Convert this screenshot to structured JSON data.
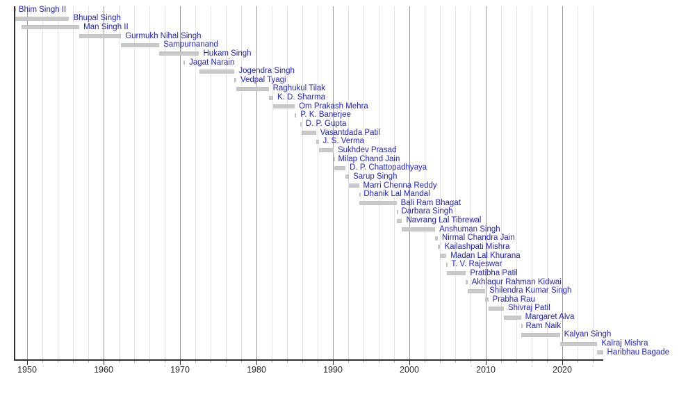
{
  "chart_data": {
    "type": "timeline",
    "title": "",
    "description_visible_text_only": "Gantt-style timeline of officeholders; each row is a grey bar for a term with the person's name to the right of the bar",
    "x_axis": {
      "range_start": 1948.35,
      "range_end": 2025.32,
      "ticks": [
        1950,
        1960,
        1970,
        1980,
        1990,
        2000,
        2010,
        2020
      ],
      "minor_gridline_interval_years": 2,
      "grid": true,
      "legend": "none"
    },
    "colors": {
      "bar": "#c9c9c9",
      "name_link": "#2222cc",
      "minor_gridline": "#e4e4e4",
      "decade_gridline": "#979797",
      "axis": "#2f2f2f",
      "tick_label": "#2a2a2a",
      "background": "#ffffff"
    },
    "rows": [
      {
        "label": "Bhim Singh II",
        "start": 1948.25,
        "end": 1948.33
      },
      {
        "label": "Bhupal Singh",
        "start": 1948.3,
        "end": 1955.5
      },
      {
        "label": "Man Singh II",
        "start": 1949.24,
        "end": 1956.83
      },
      {
        "label": "Gurmukh Nihal Singh",
        "start": 1956.83,
        "end": 1962.29
      },
      {
        "label": "Sampurnanand",
        "start": 1962.29,
        "end": 1967.29
      },
      {
        "label": "Hukam Singh",
        "start": 1967.29,
        "end": 1972.5
      },
      {
        "label": "Jagat Narain",
        "start": 1970.45,
        "end": 1970.65
      },
      {
        "label": "Jogendra Singh",
        "start": 1972.5,
        "end": 1977.12
      },
      {
        "label": "Vedpal Tyagi",
        "start": 1977.12,
        "end": 1977.36
      },
      {
        "label": "Raghukul Tilak",
        "start": 1977.38,
        "end": 1981.6
      },
      {
        "label": "K. D. Sharma",
        "start": 1981.6,
        "end": 1982.18
      },
      {
        "label": "Om Prakash Mehra",
        "start": 1982.18,
        "end": 1985.01
      },
      {
        "label": "P. K. Banerjee",
        "start": 1985.01,
        "end": 1985.2
      },
      {
        "label": "D. P. Gupta",
        "start": 1985.7,
        "end": 1985.89
      },
      {
        "label": "Vasantdada Patil",
        "start": 1985.89,
        "end": 1987.79
      },
      {
        "label": "J. S. Verma",
        "start": 1987.79,
        "end": 1988.14
      },
      {
        "label": "Sukhdev Prasad",
        "start": 1988.14,
        "end": 1990.09
      },
      {
        "label": "Milap Chand Jain",
        "start": 1990.09,
        "end": 1990.14
      },
      {
        "label": "D. P. Chattopadhyaya",
        "start": 1990.14,
        "end": 1991.65
      },
      {
        "label": "Sarup Singh",
        "start": 1991.65,
        "end": 1992.1
      },
      {
        "label": "Marri Chenna Reddy",
        "start": 1992.1,
        "end": 1993.41
      },
      {
        "label": "Dhanik Lal Mandal",
        "start": 1993.41,
        "end": 1993.49
      },
      {
        "label": "Bali Ram Bhagat",
        "start": 1993.49,
        "end": 1998.33
      },
      {
        "label": "Darbara Singh",
        "start": 1998.33,
        "end": 1998.4
      },
      {
        "label": "Navrang Lal Tibrewal",
        "start": 1998.4,
        "end": 1999.04
      },
      {
        "label": "Anshuman Singh",
        "start": 1999.04,
        "end": 2003.37
      },
      {
        "label": "Nirmal Chandra Jain",
        "start": 2003.37,
        "end": 2003.72
      },
      {
        "label": "Kailashpati Mishra",
        "start": 2003.72,
        "end": 2004.04
      },
      {
        "label": "Madan Lal Khurana",
        "start": 2004.04,
        "end": 2004.84
      },
      {
        "label": "T. V. Rajeswar",
        "start": 2004.84,
        "end": 2004.94
      },
      {
        "label": "Pratibha Patil",
        "start": 2004.94,
        "end": 2007.4
      },
      {
        "label": "Akhlaqur Rahman Kidwai",
        "start": 2007.4,
        "end": 2007.6
      },
      {
        "label": "Shilendra Kumar Singh",
        "start": 2007.6,
        "end": 2009.92
      },
      {
        "label": "Prabha Rau",
        "start": 2009.92,
        "end": 2010.32
      },
      {
        "label": "Shivraj Patil",
        "start": 2010.32,
        "end": 2012.36
      },
      {
        "label": "Margaret Alva",
        "start": 2012.36,
        "end": 2014.6
      },
      {
        "label": "Ram Naik",
        "start": 2014.6,
        "end": 2014.68
      },
      {
        "label": "Kalyan Singh",
        "start": 2014.68,
        "end": 2019.69
      },
      {
        "label": "Kalraj Mishra",
        "start": 2019.69,
        "end": 2024.58
      },
      {
        "label": "Haribhau Bagade",
        "start": 2024.58,
        "end": 2025.32
      }
    ]
  }
}
